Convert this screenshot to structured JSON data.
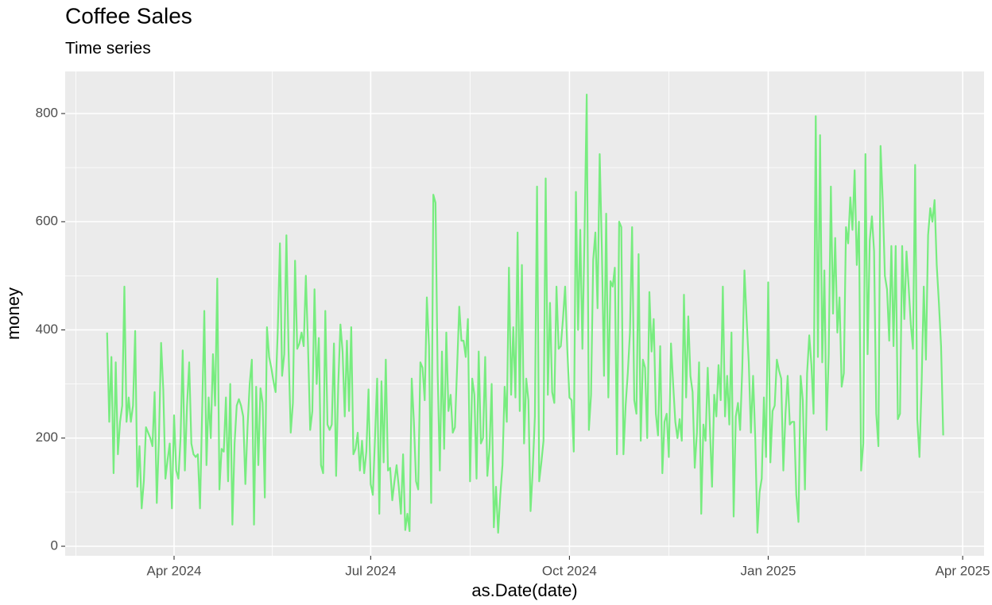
{
  "chart_data": {
    "type": "line",
    "title": "Coffee Sales",
    "subtitle": "Time series",
    "x_label": "as.Date(date)",
    "y_label": "money",
    "color": "#77ec7f",
    "grid": true,
    "xlim": [
      -19.4,
      405.9
    ],
    "ylim": [
      -17.6,
      877.8
    ],
    "xticks": [
      {
        "value": 31,
        "label": "Apr 2024"
      },
      {
        "value": 122,
        "label": "Jul 2024"
      },
      {
        "value": 214,
        "label": "Oct 2024"
      },
      {
        "value": 306,
        "label": "Jan 2025"
      },
      {
        "value": 396,
        "label": "Apr 2025"
      }
    ],
    "yticks": [
      0,
      200,
      400,
      600,
      800
    ],
    "x": [
      0,
      1,
      2,
      3,
      4,
      5,
      6,
      7,
      8,
      9,
      10,
      11,
      12,
      13,
      14,
      15,
      16,
      17,
      18,
      19,
      20,
      21,
      22,
      23,
      24,
      25,
      26,
      27,
      28,
      29,
      30,
      31,
      32,
      33,
      34,
      35,
      36,
      37,
      38,
      39,
      40,
      41,
      42,
      43,
      44,
      45,
      46,
      47,
      48,
      49,
      50,
      51,
      52,
      53,
      54,
      55,
      56,
      57,
      58,
      59,
      60,
      61,
      62,
      63,
      64,
      65,
      66,
      67,
      68,
      69,
      70,
      71,
      72,
      73,
      74,
      75,
      76,
      77,
      78,
      79,
      80,
      81,
      82,
      83,
      84,
      85,
      86,
      87,
      88,
      89,
      90,
      91,
      92,
      93,
      94,
      95,
      96,
      97,
      98,
      99,
      100,
      101,
      102,
      103,
      104,
      105,
      106,
      107,
      108,
      109,
      110,
      111,
      112,
      113,
      114,
      115,
      116,
      117,
      118,
      119,
      120,
      121,
      122,
      123,
      124,
      125,
      126,
      127,
      128,
      129,
      130,
      131,
      132,
      133,
      134,
      135,
      136,
      137,
      138,
      139,
      140,
      141,
      142,
      143,
      144,
      145,
      146,
      147,
      148,
      149,
      150,
      151,
      152,
      153,
      154,
      155,
      156,
      157,
      158,
      159,
      160,
      161,
      162,
      163,
      164,
      165,
      166,
      167,
      168,
      169,
      170,
      171,
      172,
      173,
      174,
      175,
      176,
      177,
      178,
      179,
      180,
      181,
      182,
      183,
      184,
      185,
      186,
      187,
      188,
      189,
      190,
      191,
      192,
      193,
      194,
      195,
      196,
      197,
      198,
      199,
      200,
      201,
      202,
      203,
      204,
      205,
      206,
      207,
      208,
      209,
      210,
      211,
      212,
      213,
      214,
      215,
      216,
      217,
      218,
      219,
      220,
      221,
      222,
      223,
      224,
      225,
      226,
      227,
      228,
      229,
      230,
      231,
      232,
      233,
      234,
      235,
      236,
      237,
      238,
      239,
      240,
      241,
      242,
      243,
      244,
      245,
      246,
      247,
      248,
      249,
      250,
      251,
      252,
      253,
      254,
      255,
      256,
      257,
      258,
      259,
      260,
      261,
      262,
      263,
      264,
      265,
      266,
      267,
      268,
      269,
      270,
      271,
      272,
      273,
      274,
      275,
      276,
      277,
      278,
      279,
      280,
      281,
      282,
      283,
      284,
      285,
      286,
      287,
      288,
      289,
      290,
      291,
      292,
      293,
      294,
      295,
      296,
      297,
      298,
      299,
      300,
      301,
      302,
      303,
      304,
      305,
      306,
      307,
      308,
      309,
      310,
      311,
      312,
      313,
      314,
      315,
      316,
      317,
      318,
      319,
      320,
      321,
      322,
      323,
      324,
      325,
      326,
      327,
      328,
      329,
      330,
      331,
      332,
      333,
      334,
      335,
      336,
      337,
      338,
      339,
      340,
      341,
      342,
      343,
      344,
      345,
      346,
      347,
      348,
      349,
      350,
      351,
      352,
      353,
      354,
      355,
      356,
      357,
      358,
      359,
      360,
      361,
      362,
      363,
      364,
      365,
      366,
      367,
      368,
      369,
      370,
      371,
      372,
      373,
      374,
      375,
      376,
      377,
      378,
      379,
      380,
      381,
      382,
      383,
      384,
      385,
      386,
      387
    ],
    "values": [
      395,
      230,
      350,
      135,
      340,
      170,
      230,
      260,
      480,
      230,
      275,
      230,
      260,
      398,
      110,
      185,
      70,
      120,
      220,
      210,
      200,
      185,
      285,
      80,
      200,
      376,
      290,
      125,
      160,
      190,
      70,
      242,
      140,
      125,
      200,
      362,
      140,
      260,
      340,
      190,
      170,
      165,
      170,
      70,
      250,
      435,
      150,
      275,
      200,
      355,
      260,
      495,
      105,
      180,
      175,
      275,
      120,
      300,
      40,
      190,
      260,
      272,
      260,
      240,
      115,
      220,
      300,
      345,
      40,
      295,
      150,
      292,
      265,
      90,
      405,
      350,
      330,
      305,
      285,
      400,
      560,
      315,
      355,
      575,
      360,
      210,
      265,
      528,
      365,
      375,
      395,
      370,
      500,
      370,
      215,
      250,
      475,
      300,
      385,
      150,
      135,
      435,
      225,
      215,
      225,
      375,
      130,
      300,
      410,
      360,
      240,
      380,
      250,
      405,
      170,
      180,
      210,
      140,
      195,
      135,
      175,
      290,
      115,
      95,
      200,
      310,
      60,
      305,
      155,
      345,
      140,
      145,
      85,
      120,
      150,
      110,
      60,
      170,
      30,
      60,
      28,
      310,
      230,
      120,
      105,
      340,
      330,
      270,
      460,
      370,
      80,
      650,
      635,
      320,
      140,
      360,
      180,
      395,
      250,
      280,
      210,
      220,
      330,
      443,
      380,
      380,
      350,
      420,
      120,
      310,
      280,
      125,
      360,
      190,
      200,
      350,
      130,
      180,
      300,
      35,
      110,
      25,
      95,
      150,
      295,
      230,
      515,
      280,
      405,
      275,
      580,
      250,
      520,
      190,
      310,
      270,
      65,
      140,
      240,
      665,
      120,
      155,
      195,
      680,
      280,
      450,
      285,
      265,
      480,
      365,
      370,
      420,
      480,
      365,
      275,
      270,
      175,
      655,
      400,
      585,
      365,
      580,
      835,
      215,
      280,
      530,
      580,
      440,
      725,
      550,
      315,
      615,
      275,
      490,
      480,
      515,
      170,
      600,
      590,
      170,
      260,
      320,
      395,
      590,
      270,
      245,
      540,
      195,
      345,
      330,
      200,
      470,
      360,
      420,
      245,
      205,
      370,
      135,
      230,
      245,
      165,
      375,
      300,
      230,
      200,
      235,
      195,
      465,
      275,
      425,
      315,
      285,
      145,
      210,
      340,
      60,
      225,
      195,
      330,
      220,
      110,
      280,
      240,
      335,
      270,
      480,
      240,
      315,
      225,
      395,
      55,
      240,
      265,
      215,
      330,
      510,
      420,
      340,
      210,
      315,
      200,
      25,
      100,
      125,
      275,
      165,
      488,
      155,
      250,
      260,
      345,
      325,
      310,
      140,
      245,
      315,
      225,
      230,
      230,
      95,
      45,
      315,
      270,
      105,
      320,
      390,
      335,
      245,
      795,
      350,
      760,
      340,
      510,
      215,
      355,
      665,
      430,
      570,
      395,
      460,
      295,
      320,
      590,
      560,
      645,
      585,
      695,
      520,
      600,
      140,
      190,
      725,
      355,
      565,
      610,
      545,
      245,
      185,
      740,
      640,
      500,
      475,
      380,
      555,
      370,
      555,
      235,
      245,
      555,
      420,
      545,
      480,
      410,
      365,
      705,
      235,
      165,
      300,
      480,
      345,
      575,
      625,
      600,
      640,
      520,
      450,
      370,
      205
    ]
  }
}
